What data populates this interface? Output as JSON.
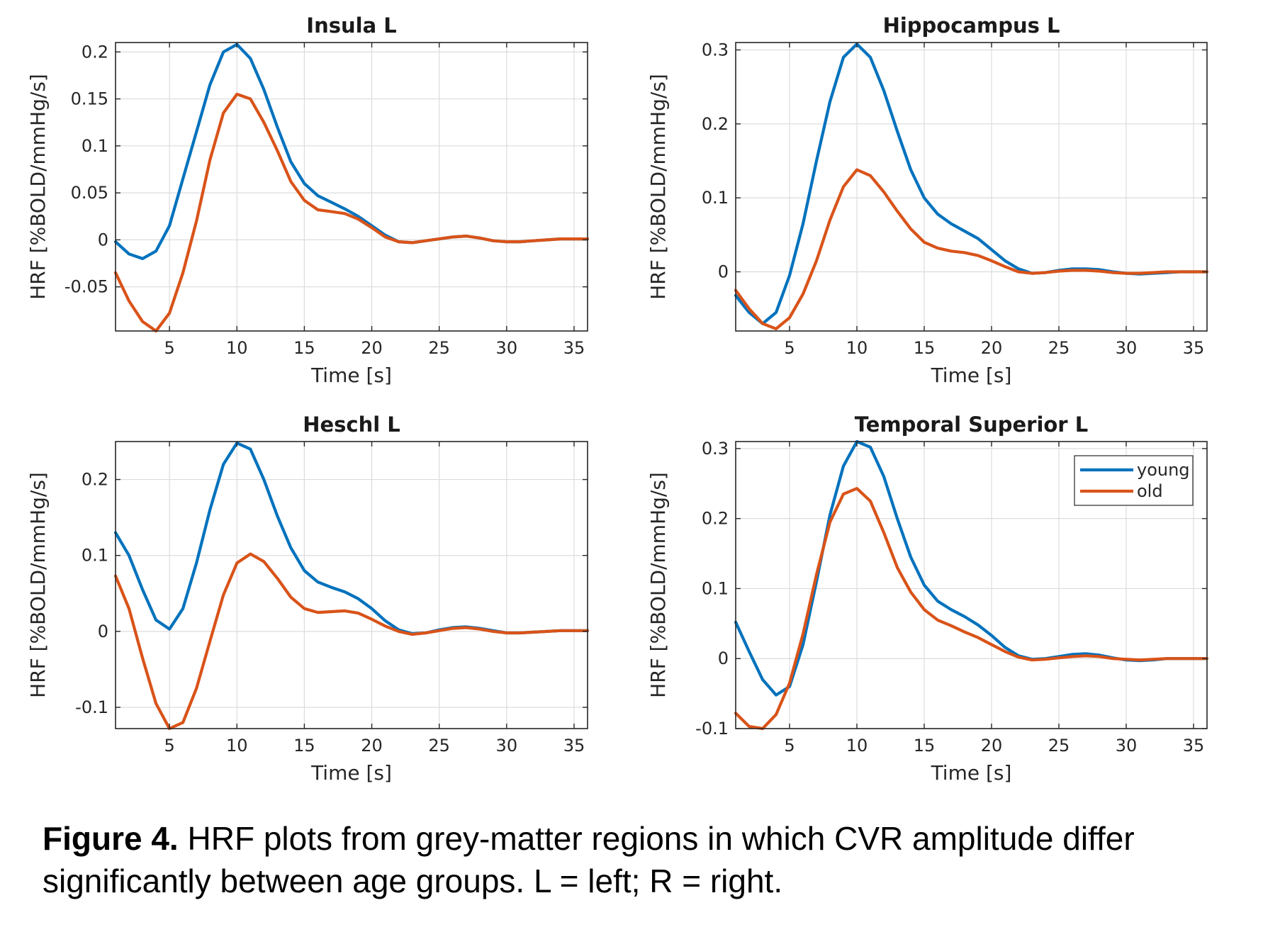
{
  "figure": {
    "caption_label": "Figure 4.",
    "caption_text": " HRF plots from grey-matter regions in which CVR amplitude differ significantly between age groups. L = left; R = right."
  },
  "colors": {
    "young": "#0072BD",
    "old": "#D95319",
    "grid": "#dcdcdc",
    "axis": "#262626"
  },
  "chart_data": [
    {
      "type": "line",
      "title": "Insula L",
      "xlabel": "Time [s]",
      "ylabel": "HRF [%BOLD/mmHg/s]",
      "xlim": [
        1,
        36
      ],
      "ylim": [
        -0.097,
        0.21
      ],
      "xticks": [
        5,
        10,
        15,
        20,
        25,
        30,
        35
      ],
      "yticks": [
        -0.05,
        0,
        0.05,
        0.1,
        0.15,
        0.2
      ],
      "ytick_labels": [
        "-0.05",
        "0",
        "0.05",
        "0.1",
        "0.15",
        "0.2"
      ],
      "grid": true,
      "legend": null,
      "x": [
        1,
        2,
        3,
        4,
        5,
        6,
        7,
        8,
        9,
        10,
        11,
        12,
        13,
        14,
        15,
        16,
        17,
        18,
        19,
        20,
        21,
        22,
        23,
        24,
        25,
        26,
        27,
        28,
        29,
        30,
        31,
        32,
        33,
        34,
        35,
        36
      ],
      "series": [
        {
          "name": "young",
          "values": [
            -0.002,
            -0.015,
            -0.02,
            -0.012,
            0.015,
            0.065,
            0.115,
            0.165,
            0.2,
            0.208,
            0.193,
            0.16,
            0.12,
            0.083,
            0.06,
            0.047,
            0.04,
            0.033,
            0.025,
            0.015,
            0.005,
            -0.002,
            -0.003,
            -0.001,
            0.001,
            0.003,
            0.004,
            0.002,
            -0.001,
            -0.002,
            -0.002,
            -0.001,
            0.0,
            0.001,
            0.001,
            0.001
          ]
        },
        {
          "name": "old",
          "values": [
            -0.035,
            -0.065,
            -0.087,
            -0.097,
            -0.078,
            -0.035,
            0.02,
            0.085,
            0.135,
            0.155,
            0.15,
            0.125,
            0.095,
            0.062,
            0.042,
            0.032,
            0.03,
            0.028,
            0.022,
            0.013,
            0.003,
            -0.002,
            -0.003,
            -0.001,
            0.001,
            0.003,
            0.004,
            0.002,
            -0.001,
            -0.002,
            -0.002,
            -0.001,
            0.0,
            0.001,
            0.001,
            0.001
          ]
        }
      ]
    },
    {
      "type": "line",
      "title": "Hippocampus L",
      "xlabel": "Time [s]",
      "ylabel": "HRF [%BOLD/mmHg/s]",
      "xlim": [
        1,
        36
      ],
      "ylim": [
        -0.08,
        0.31
      ],
      "xticks": [
        5,
        10,
        15,
        20,
        25,
        30,
        35
      ],
      "yticks": [
        0,
        0.1,
        0.2,
        0.3
      ],
      "ytick_labels": [
        "0",
        "0.1",
        "0.2",
        "0.3"
      ],
      "grid": true,
      "legend": null,
      "x": [
        1,
        2,
        3,
        4,
        5,
        6,
        7,
        8,
        9,
        10,
        11,
        12,
        13,
        14,
        15,
        16,
        17,
        18,
        19,
        20,
        21,
        22,
        23,
        24,
        25,
        26,
        27,
        28,
        29,
        30,
        31,
        32,
        33,
        34,
        35,
        36
      ],
      "series": [
        {
          "name": "young",
          "values": [
            -0.032,
            -0.055,
            -0.07,
            -0.055,
            -0.005,
            0.065,
            0.15,
            0.23,
            0.29,
            0.308,
            0.29,
            0.245,
            0.19,
            0.138,
            0.1,
            0.078,
            0.065,
            0.055,
            0.045,
            0.03,
            0.015,
            0.004,
            -0.002,
            -0.001,
            0.002,
            0.004,
            0.004,
            0.003,
            0.0,
            -0.002,
            -0.003,
            -0.002,
            -0.001,
            0.0,
            0.0,
            0.0
          ]
        },
        {
          "name": "old",
          "values": [
            -0.025,
            -0.05,
            -0.07,
            -0.077,
            -0.062,
            -0.03,
            0.015,
            0.07,
            0.115,
            0.138,
            0.13,
            0.108,
            0.082,
            0.058,
            0.04,
            0.032,
            0.028,
            0.026,
            0.022,
            0.015,
            0.007,
            0.0,
            -0.002,
            -0.001,
            0.001,
            0.002,
            0.002,
            0.001,
            -0.001,
            -0.002,
            -0.002,
            -0.001,
            0.0,
            0.0,
            0.0,
            0.0
          ]
        }
      ]
    },
    {
      "type": "line",
      "title": "Heschl L",
      "xlabel": "Time [s]",
      "ylabel": "HRF [%BOLD/mmHg/s]",
      "xlim": [
        1,
        36
      ],
      "ylim": [
        -0.128,
        0.25
      ],
      "xticks": [
        5,
        10,
        15,
        20,
        25,
        30,
        35
      ],
      "yticks": [
        -0.1,
        0,
        0.1,
        0.2
      ],
      "ytick_labels": [
        "-0.1",
        "0",
        "0.1",
        "0.2"
      ],
      "grid": true,
      "legend": null,
      "x": [
        1,
        2,
        3,
        4,
        5,
        6,
        7,
        8,
        9,
        10,
        11,
        12,
        13,
        14,
        15,
        16,
        17,
        18,
        19,
        20,
        21,
        22,
        23,
        24,
        25,
        26,
        27,
        28,
        29,
        30,
        31,
        32,
        33,
        34,
        35,
        36
      ],
      "series": [
        {
          "name": "young",
          "values": [
            0.13,
            0.1,
            0.055,
            0.015,
            0.003,
            0.03,
            0.09,
            0.16,
            0.22,
            0.248,
            0.24,
            0.2,
            0.152,
            0.11,
            0.08,
            0.065,
            0.058,
            0.052,
            0.043,
            0.03,
            0.014,
            0.002,
            -0.003,
            -0.002,
            0.002,
            0.005,
            0.006,
            0.004,
            0.001,
            -0.002,
            -0.002,
            -0.001,
            0.0,
            0.001,
            0.001,
            0.001
          ]
        },
        {
          "name": "old",
          "values": [
            0.073,
            0.03,
            -0.035,
            -0.095,
            -0.128,
            -0.12,
            -0.075,
            -0.013,
            0.048,
            0.09,
            0.102,
            0.092,
            0.07,
            0.045,
            0.03,
            0.025,
            0.026,
            0.027,
            0.024,
            0.016,
            0.007,
            0.0,
            -0.004,
            -0.002,
            0.001,
            0.004,
            0.005,
            0.003,
            0.0,
            -0.002,
            -0.002,
            -0.001,
            0.0,
            0.001,
            0.001,
            0.001
          ]
        }
      ]
    },
    {
      "type": "line",
      "title": "Temporal Superior L",
      "xlabel": "Time [s]",
      "ylabel": "HRF [%BOLD/mmHg/s]",
      "xlim": [
        1,
        36
      ],
      "ylim": [
        -0.1,
        0.31
      ],
      "xticks": [
        5,
        10,
        15,
        20,
        25,
        30,
        35
      ],
      "yticks": [
        -0.1,
        0,
        0.1,
        0.2,
        0.3
      ],
      "ytick_labels": [
        "-0.1",
        "0",
        "0.1",
        "0.2",
        "0.3"
      ],
      "grid": true,
      "legend": {
        "position": "top-right",
        "entries": [
          "young",
          "old"
        ]
      },
      "x": [
        1,
        2,
        3,
        4,
        5,
        6,
        7,
        8,
        9,
        10,
        11,
        12,
        13,
        14,
        15,
        16,
        17,
        18,
        19,
        20,
        21,
        22,
        23,
        24,
        25,
        26,
        27,
        28,
        29,
        30,
        31,
        32,
        33,
        34,
        35,
        36
      ],
      "series": [
        {
          "name": "young",
          "values": [
            0.052,
            0.01,
            -0.03,
            -0.052,
            -0.04,
            0.02,
            0.11,
            0.205,
            0.275,
            0.31,
            0.302,
            0.26,
            0.2,
            0.145,
            0.105,
            0.082,
            0.07,
            0.06,
            0.048,
            0.033,
            0.016,
            0.004,
            -0.001,
            0.0,
            0.003,
            0.006,
            0.007,
            0.005,
            0.001,
            -0.002,
            -0.003,
            -0.002,
            0.0,
            0.0,
            0.0,
            0.0
          ]
        },
        {
          "name": "old",
          "values": [
            -0.078,
            -0.097,
            -0.1,
            -0.08,
            -0.035,
            0.035,
            0.12,
            0.195,
            0.235,
            0.243,
            0.225,
            0.18,
            0.13,
            0.095,
            0.07,
            0.055,
            0.047,
            0.038,
            0.03,
            0.02,
            0.01,
            0.002,
            -0.002,
            -0.001,
            0.001,
            0.003,
            0.004,
            0.003,
            0.0,
            -0.001,
            -0.002,
            -0.001,
            0.0,
            0.0,
            0.0,
            0.0
          ]
        }
      ]
    }
  ]
}
